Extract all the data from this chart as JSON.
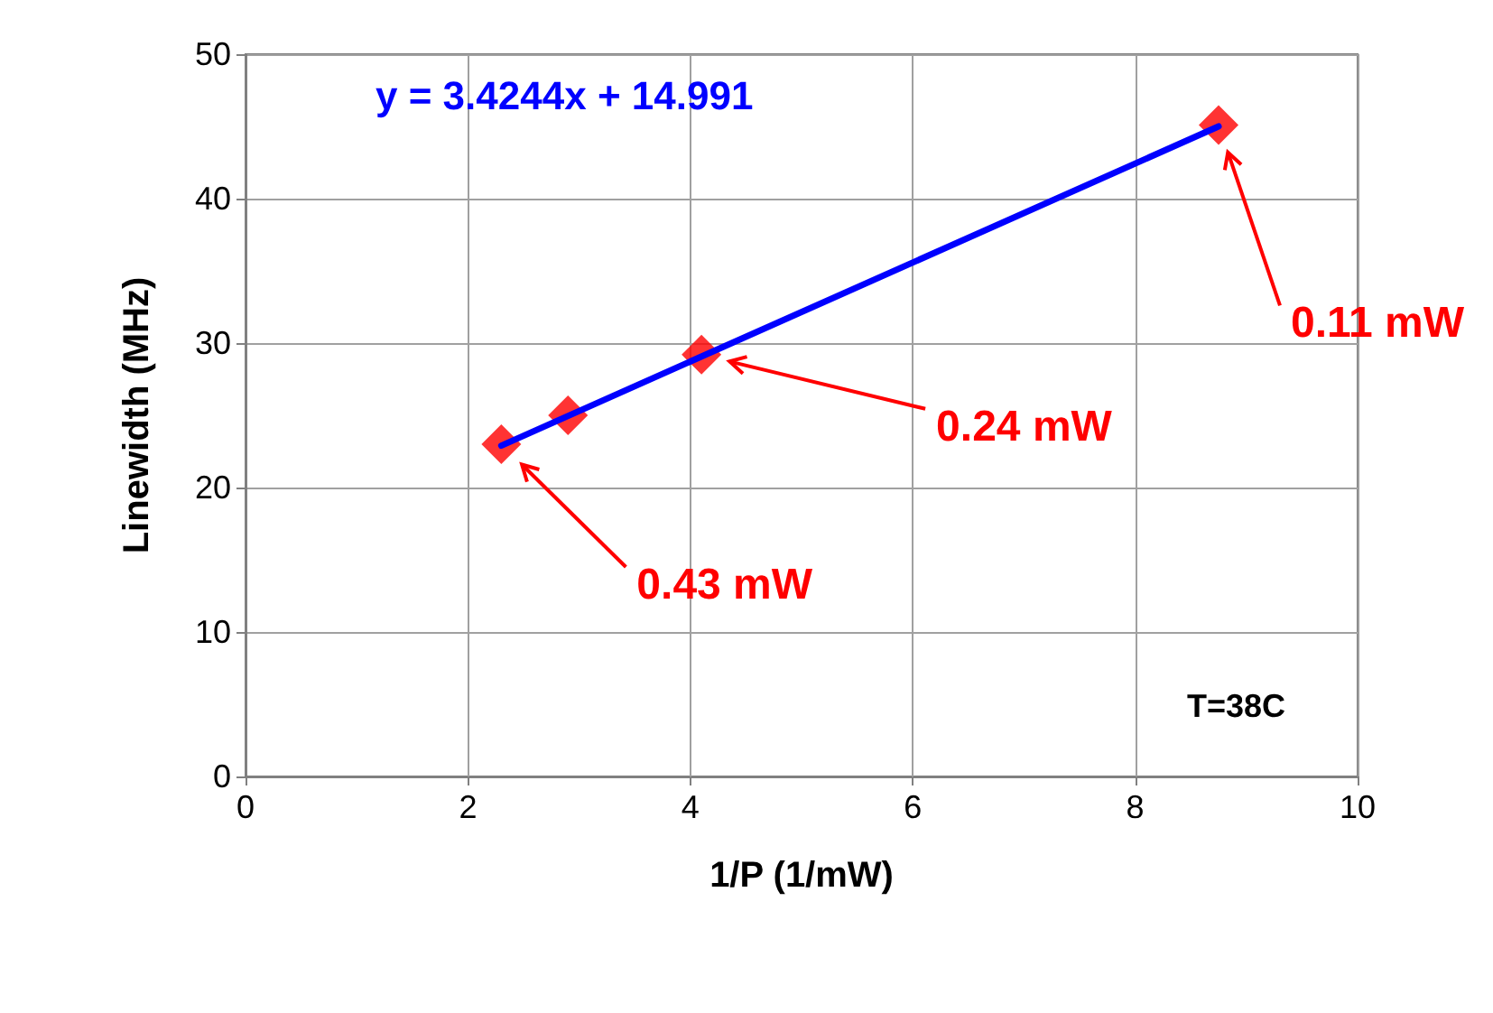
{
  "chart_data": {
    "type": "scatter",
    "xlabel": "1/P (1/mW)",
    "ylabel": "Linewidth (MHz)",
    "xlim": [
      0,
      10
    ],
    "ylim": [
      0,
      50
    ],
    "xticks": [
      0,
      2,
      4,
      6,
      8,
      10
    ],
    "yticks": [
      0,
      10,
      20,
      30,
      40,
      50
    ],
    "grid": true,
    "legend": false,
    "marker": "diamond",
    "x": [
      2.3,
      2.9,
      4.1,
      8.75
    ],
    "series": [
      {
        "color": "#ff0000",
        "values": [
          23,
          25,
          29.2,
          45.1
        ]
      },
      {
        "type": "line",
        "name": "y = 3.4244x + 14.991",
        "color": "#0000ff",
        "x": [
          2.3,
          8.75
        ],
        "values": [
          22.9,
          45.0
        ],
        "line_style": "solid",
        "marker": "none"
      }
    ],
    "annotations": [
      "0.43 mW",
      "0.24 mW",
      "0.11 mW",
      "T=38C"
    ]
  }
}
